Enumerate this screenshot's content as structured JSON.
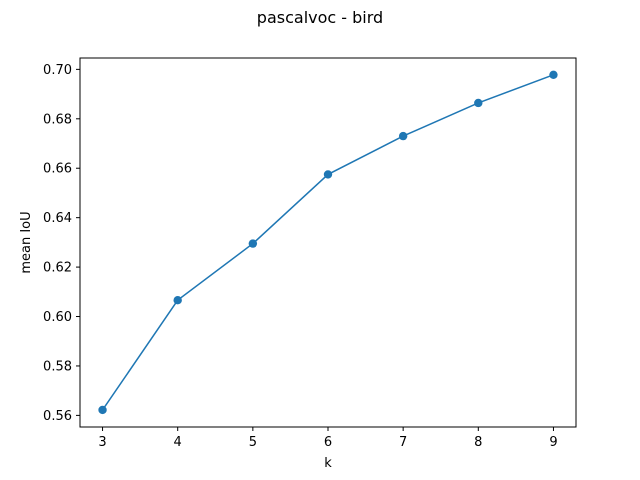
{
  "chart_data": {
    "type": "line",
    "title": "pascalvoc - bird",
    "xlabel": "k",
    "ylabel": "mean IoU",
    "x": [
      3,
      4,
      5,
      6,
      7,
      8,
      9
    ],
    "series": [
      {
        "values": [
          0.5622,
          0.6066,
          0.6295,
          0.6575,
          0.673,
          0.6864,
          0.6978
        ],
        "color": "#1f77b4",
        "marker": "circle"
      }
    ],
    "xlim": [
      2.7,
      9.3
    ],
    "ylim": [
      0.5553,
      0.7046
    ],
    "xticks": [
      3,
      4,
      5,
      6,
      7,
      8,
      9
    ],
    "yticks": [
      0.56,
      0.58,
      0.6,
      0.62,
      0.64,
      0.66,
      0.68,
      0.7
    ],
    "ytick_labels": [
      "0.56",
      "0.58",
      "0.60",
      "0.62",
      "0.64",
      "0.66",
      "0.68",
      "0.70"
    ],
    "grid": false,
    "legend": "none"
  }
}
